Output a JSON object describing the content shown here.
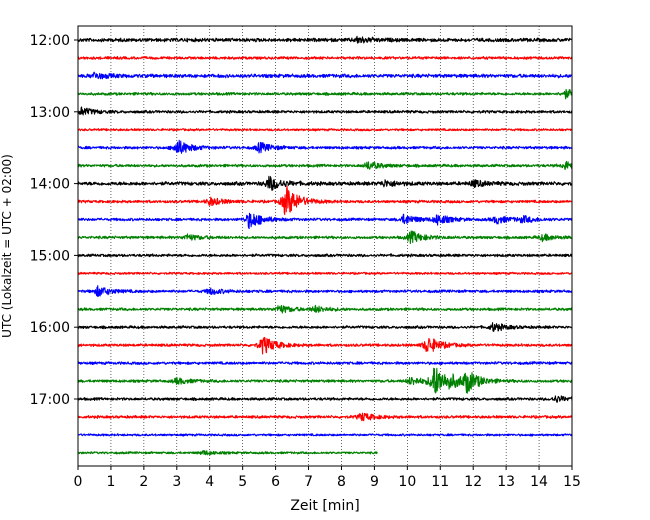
{
  "chart_data": {
    "type": "line",
    "title": "",
    "xlabel": "Zeit  [min]",
    "ylabel": "UTC (Lokalzeit = UTC + 02:00)",
    "xlim": [
      0,
      15
    ],
    "x_ticks": [
      0,
      1,
      2,
      3,
      4,
      5,
      6,
      7,
      8,
      9,
      10,
      11,
      12,
      13,
      14,
      15
    ],
    "y_tick_labels": [
      "12:00",
      "13:00",
      "14:00",
      "15:00",
      "16:00",
      "17:00"
    ],
    "grid": "vertical-dotted",
    "trace_interval_min": 15,
    "colors_cycle": [
      "#000000",
      "#ff0000",
      "#0000ff",
      "#008000"
    ],
    "traces": [
      {
        "start": "12:00",
        "color": "#000000",
        "end_min": 15,
        "base_amp": 2,
        "events": [
          {
            "t": 8.5,
            "amp": 3
          }
        ]
      },
      {
        "start": "12:15",
        "color": "#ff0000",
        "end_min": 15,
        "base_amp": 1.5,
        "events": []
      },
      {
        "start": "12:30",
        "color": "#0000ff",
        "end_min": 15,
        "base_amp": 2,
        "events": [
          {
            "t": 0.5,
            "amp": 3
          }
        ]
      },
      {
        "start": "12:45",
        "color": "#008000",
        "end_min": 15,
        "base_amp": 1.5,
        "events": [
          {
            "t": 14.8,
            "amp": 4
          }
        ]
      },
      {
        "start": "13:00",
        "color": "#000000",
        "end_min": 15,
        "base_amp": 1.5,
        "events": [
          {
            "t": 0.1,
            "amp": 4
          }
        ]
      },
      {
        "start": "13:15",
        "color": "#ff0000",
        "end_min": 15,
        "base_amp": 1.2,
        "events": []
      },
      {
        "start": "13:30",
        "color": "#0000ff",
        "end_min": 15,
        "base_amp": 1.5,
        "events": [
          {
            "t": 3.0,
            "amp": 8
          },
          {
            "t": 5.5,
            "amp": 5
          }
        ]
      },
      {
        "start": "13:45",
        "color": "#008000",
        "end_min": 15,
        "base_amp": 1.5,
        "events": [
          {
            "t": 8.8,
            "amp": 4
          },
          {
            "t": 14.8,
            "amp": 4
          }
        ]
      },
      {
        "start": "14:00",
        "color": "#000000",
        "end_min": 15,
        "base_amp": 2,
        "events": [
          {
            "t": 5.8,
            "amp": 7
          },
          {
            "t": 9.3,
            "amp": 3
          },
          {
            "t": 12.0,
            "amp": 3
          }
        ]
      },
      {
        "start": "14:15",
        "color": "#ff0000",
        "end_min": 15,
        "base_amp": 1.5,
        "events": [
          {
            "t": 6.3,
            "amp": 16
          },
          {
            "t": 4.0,
            "amp": 4
          }
        ]
      },
      {
        "start": "14:30",
        "color": "#0000ff",
        "end_min": 15,
        "base_amp": 1.5,
        "events": [
          {
            "t": 5.2,
            "amp": 9
          },
          {
            "t": 9.9,
            "amp": 5
          },
          {
            "t": 10.9,
            "amp": 5
          },
          {
            "t": 12.7,
            "amp": 4
          },
          {
            "t": 13.5,
            "amp": 3
          }
        ]
      },
      {
        "start": "14:45",
        "color": "#008000",
        "end_min": 15,
        "base_amp": 1.5,
        "events": [
          {
            "t": 3.3,
            "amp": 3
          },
          {
            "t": 10.1,
            "amp": 6
          },
          {
            "t": 14.1,
            "amp": 3
          }
        ]
      },
      {
        "start": "15:00",
        "color": "#000000",
        "end_min": 15,
        "base_amp": 1.5,
        "events": []
      },
      {
        "start": "15:15",
        "color": "#ff0000",
        "end_min": 15,
        "base_amp": 1.2,
        "events": []
      },
      {
        "start": "15:30",
        "color": "#0000ff",
        "end_min": 15,
        "base_amp": 1.5,
        "events": [
          {
            "t": 0.6,
            "amp": 5
          },
          {
            "t": 4.0,
            "amp": 3
          }
        ]
      },
      {
        "start": "15:45",
        "color": "#008000",
        "end_min": 15,
        "base_amp": 1.5,
        "events": [
          {
            "t": 6.1,
            "amp": 4
          },
          {
            "t": 7.2,
            "amp": 3
          }
        ]
      },
      {
        "start": "16:00",
        "color": "#000000",
        "end_min": 15,
        "base_amp": 1.5,
        "events": [
          {
            "t": 12.6,
            "amp": 4
          }
        ]
      },
      {
        "start": "16:15",
        "color": "#ff0000",
        "end_min": 15,
        "base_amp": 1.5,
        "events": [
          {
            "t": 5.6,
            "amp": 9
          },
          {
            "t": 10.6,
            "amp": 9
          }
        ]
      },
      {
        "start": "16:30",
        "color": "#0000ff",
        "end_min": 15,
        "base_amp": 1.5,
        "events": []
      },
      {
        "start": "16:45",
        "color": "#008000",
        "end_min": 15,
        "base_amp": 1.5,
        "events": [
          {
            "t": 10.8,
            "amp": 16
          },
          {
            "t": 11.8,
            "amp": 10
          },
          {
            "t": 11.3,
            "amp": 4
          },
          {
            "t": 10.1,
            "amp": 4
          },
          {
            "t": 3.0,
            "amp": 3
          }
        ]
      },
      {
        "start": "17:00",
        "color": "#000000",
        "end_min": 15,
        "base_amp": 1.5,
        "events": [
          {
            "t": 14.5,
            "amp": 3
          }
        ]
      },
      {
        "start": "17:15",
        "color": "#ff0000",
        "end_min": 15,
        "base_amp": 1.5,
        "events": [
          {
            "t": 8.6,
            "amp": 4
          }
        ]
      },
      {
        "start": "17:30",
        "color": "#0000ff",
        "end_min": 15,
        "base_amp": 1.2,
        "events": []
      },
      {
        "start": "17:45",
        "color": "#008000",
        "end_min": 9.1,
        "base_amp": 1.2,
        "events": [
          {
            "t": 3.8,
            "amp": 2
          }
        ]
      }
    ]
  }
}
